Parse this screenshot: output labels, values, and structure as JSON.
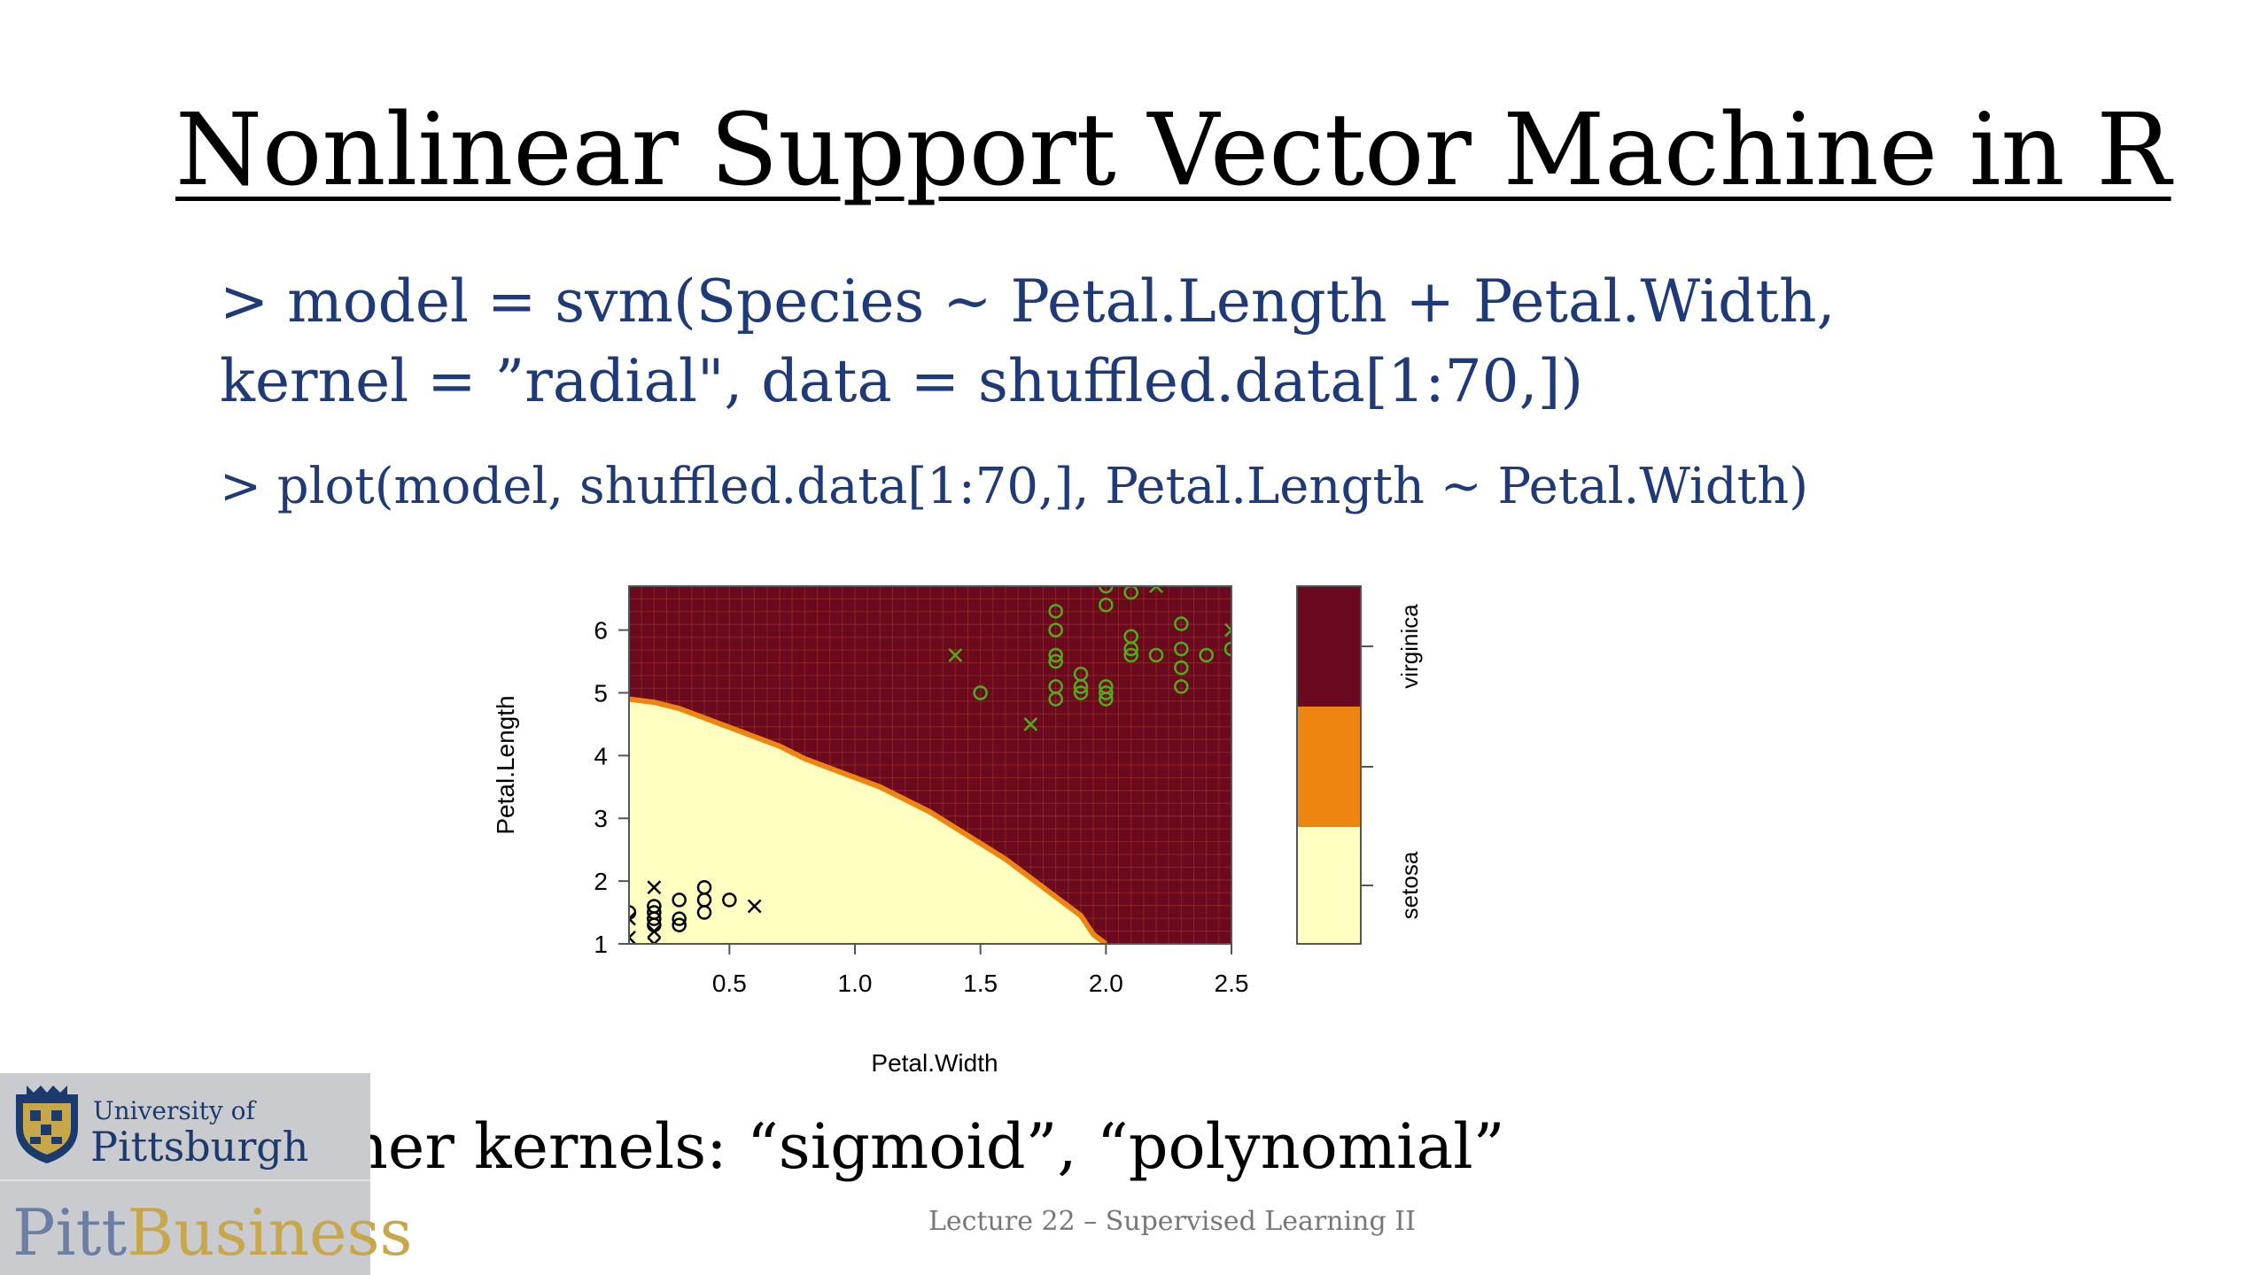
{
  "slide": {
    "title": "Nonlinear Support Vector Machine in R",
    "code_line_1": "> model = svm(Species ~ Petal.Length + Petal.Width,",
    "code_line_2": "kernel = ”radial\",   data = shuffled.data[1:70,])",
    "code_line_3": "> plot(model, shuffled.data[1:70,], Petal.Length ~ Petal.Width)",
    "bullet_symbol": "•",
    "bullet_text": "Other kernels: “sigmoid”, “polynomial”",
    "footer": "Lecture 22 – Supervised Learning II"
  },
  "logo": {
    "university_of": "University of",
    "pittsburgh": "Pittsburgh",
    "pitt": "Pitt",
    "business": "Business"
  },
  "colors": {
    "title": "#000000",
    "code": "#1f3a78",
    "virginica_region": "#6b0a1e",
    "versicolor_region": "#ee8510",
    "setosa_region": "#ffffc2",
    "point_green": "#4caf1a",
    "point_black": "#000000"
  },
  "chart_data": {
    "type": "scatter",
    "title": "",
    "xlabel": "Petal.Width",
    "ylabel": "Petal.Length",
    "xlim": [
      0.1,
      2.5
    ],
    "ylim": [
      1,
      6.7
    ],
    "xticks": [
      "0.5",
      "1.0",
      "1.5",
      "2.0",
      "2.5"
    ],
    "yticks": [
      "1",
      "2",
      "3",
      "4",
      "5",
      "6"
    ],
    "legend_labels": [
      "virginica",
      "setosa"
    ],
    "legend_colors": [
      "#6b0a1e",
      "#ee8510",
      "#ffffc2"
    ],
    "decision_boundary": {
      "x": [
        0.1,
        0.2,
        0.3,
        0.4,
        0.5,
        0.6,
        0.7,
        0.8,
        0.9,
        1.0,
        1.1,
        1.2,
        1.3,
        1.4,
        1.5,
        1.6,
        1.7,
        1.8,
        1.9,
        1.95,
        2.0
      ],
      "y": [
        4.9,
        4.85,
        4.75,
        4.6,
        4.45,
        4.3,
        4.15,
        3.95,
        3.8,
        3.65,
        3.5,
        3.3,
        3.1,
        2.85,
        2.6,
        2.35,
        2.05,
        1.75,
        1.45,
        1.15,
        1.0
      ]
    },
    "series": [
      {
        "name": "virginica",
        "points": [
          {
            "x": 1.4,
            "y": 5.6,
            "m": "x"
          },
          {
            "x": 1.5,
            "y": 5.0,
            "m": "o"
          },
          {
            "x": 1.7,
            "y": 4.5,
            "m": "x"
          },
          {
            "x": 1.8,
            "y": 6.3,
            "m": "o"
          },
          {
            "x": 1.8,
            "y": 6.0,
            "m": "o"
          },
          {
            "x": 1.8,
            "y": 5.6,
            "m": "o"
          },
          {
            "x": 1.8,
            "y": 5.5,
            "m": "o"
          },
          {
            "x": 1.8,
            "y": 5.1,
            "m": "o"
          },
          {
            "x": 1.8,
            "y": 4.9,
            "m": "o"
          },
          {
            "x": 1.9,
            "y": 5.3,
            "m": "o"
          },
          {
            "x": 1.9,
            "y": 5.1,
            "m": "o"
          },
          {
            "x": 1.9,
            "y": 5.0,
            "m": "o"
          },
          {
            "x": 2.0,
            "y": 6.7,
            "m": "o"
          },
          {
            "x": 2.0,
            "y": 6.4,
            "m": "o"
          },
          {
            "x": 2.0,
            "y": 5.1,
            "m": "o"
          },
          {
            "x": 2.0,
            "y": 5.0,
            "m": "o"
          },
          {
            "x": 2.0,
            "y": 4.9,
            "m": "o"
          },
          {
            "x": 2.1,
            "y": 6.6,
            "m": "o"
          },
          {
            "x": 2.1,
            "y": 5.9,
            "m": "o"
          },
          {
            "x": 2.1,
            "y": 5.7,
            "m": "o"
          },
          {
            "x": 2.1,
            "y": 5.6,
            "m": "o"
          },
          {
            "x": 2.2,
            "y": 6.7,
            "m": "x"
          },
          {
            "x": 2.2,
            "y": 5.6,
            "m": "o"
          },
          {
            "x": 2.3,
            "y": 6.1,
            "m": "o"
          },
          {
            "x": 2.3,
            "y": 5.7,
            "m": "o"
          },
          {
            "x": 2.3,
            "y": 5.4,
            "m": "o"
          },
          {
            "x": 2.3,
            "y": 5.1,
            "m": "o"
          },
          {
            "x": 2.4,
            "y": 5.6,
            "m": "o"
          },
          {
            "x": 2.5,
            "y": 6.0,
            "m": "x"
          },
          {
            "x": 2.5,
            "y": 5.7,
            "m": "o"
          }
        ]
      },
      {
        "name": "setosa",
        "points": [
          {
            "x": 0.1,
            "y": 1.5,
            "m": "o"
          },
          {
            "x": 0.1,
            "y": 1.4,
            "m": "x"
          },
          {
            "x": 0.1,
            "y": 1.1,
            "m": "x"
          },
          {
            "x": 0.2,
            "y": 1.9,
            "m": "x"
          },
          {
            "x": 0.2,
            "y": 1.6,
            "m": "o"
          },
          {
            "x": 0.2,
            "y": 1.5,
            "m": "o"
          },
          {
            "x": 0.2,
            "y": 1.4,
            "m": "o"
          },
          {
            "x": 0.2,
            "y": 1.3,
            "m": "o"
          },
          {
            "x": 0.2,
            "y": 1.2,
            "m": "x"
          },
          {
            "x": 0.2,
            "y": 1.0,
            "m": "x"
          },
          {
            "x": 0.3,
            "y": 1.7,
            "m": "o"
          },
          {
            "x": 0.3,
            "y": 1.4,
            "m": "o"
          },
          {
            "x": 0.3,
            "y": 1.3,
            "m": "o"
          },
          {
            "x": 0.4,
            "y": 1.9,
            "m": "o"
          },
          {
            "x": 0.4,
            "y": 1.7,
            "m": "o"
          },
          {
            "x": 0.4,
            "y": 1.5,
            "m": "o"
          },
          {
            "x": 0.5,
            "y": 1.7,
            "m": "o"
          },
          {
            "x": 0.6,
            "y": 1.6,
            "m": "x"
          }
        ]
      }
    ]
  }
}
